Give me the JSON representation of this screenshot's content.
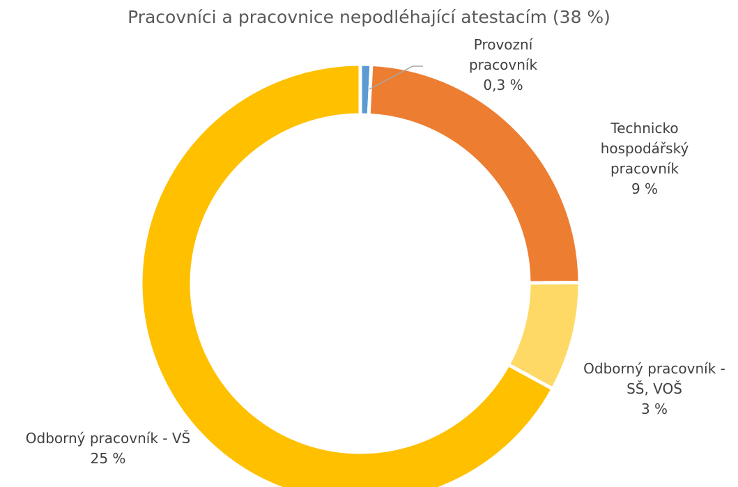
{
  "chart_data": {
    "type": "donut",
    "title": "Pracovníci a pracovnice nepodléhající atestacím (38 %)",
    "categories": [
      "Provozní pracovník",
      "Technicko hospodářský pracovník",
      "Odborný pracovník - SŠ, VOŠ",
      "Odborný pracovník - VŠ"
    ],
    "values": [
      0.3,
      9,
      3,
      25
    ],
    "value_labels": [
      "0,3 %",
      "9 %",
      "3 %",
      "25 %"
    ],
    "colors": [
      "#5b9bd5",
      "#ed7d31",
      "#ffd966",
      "#ffc000"
    ]
  }
}
